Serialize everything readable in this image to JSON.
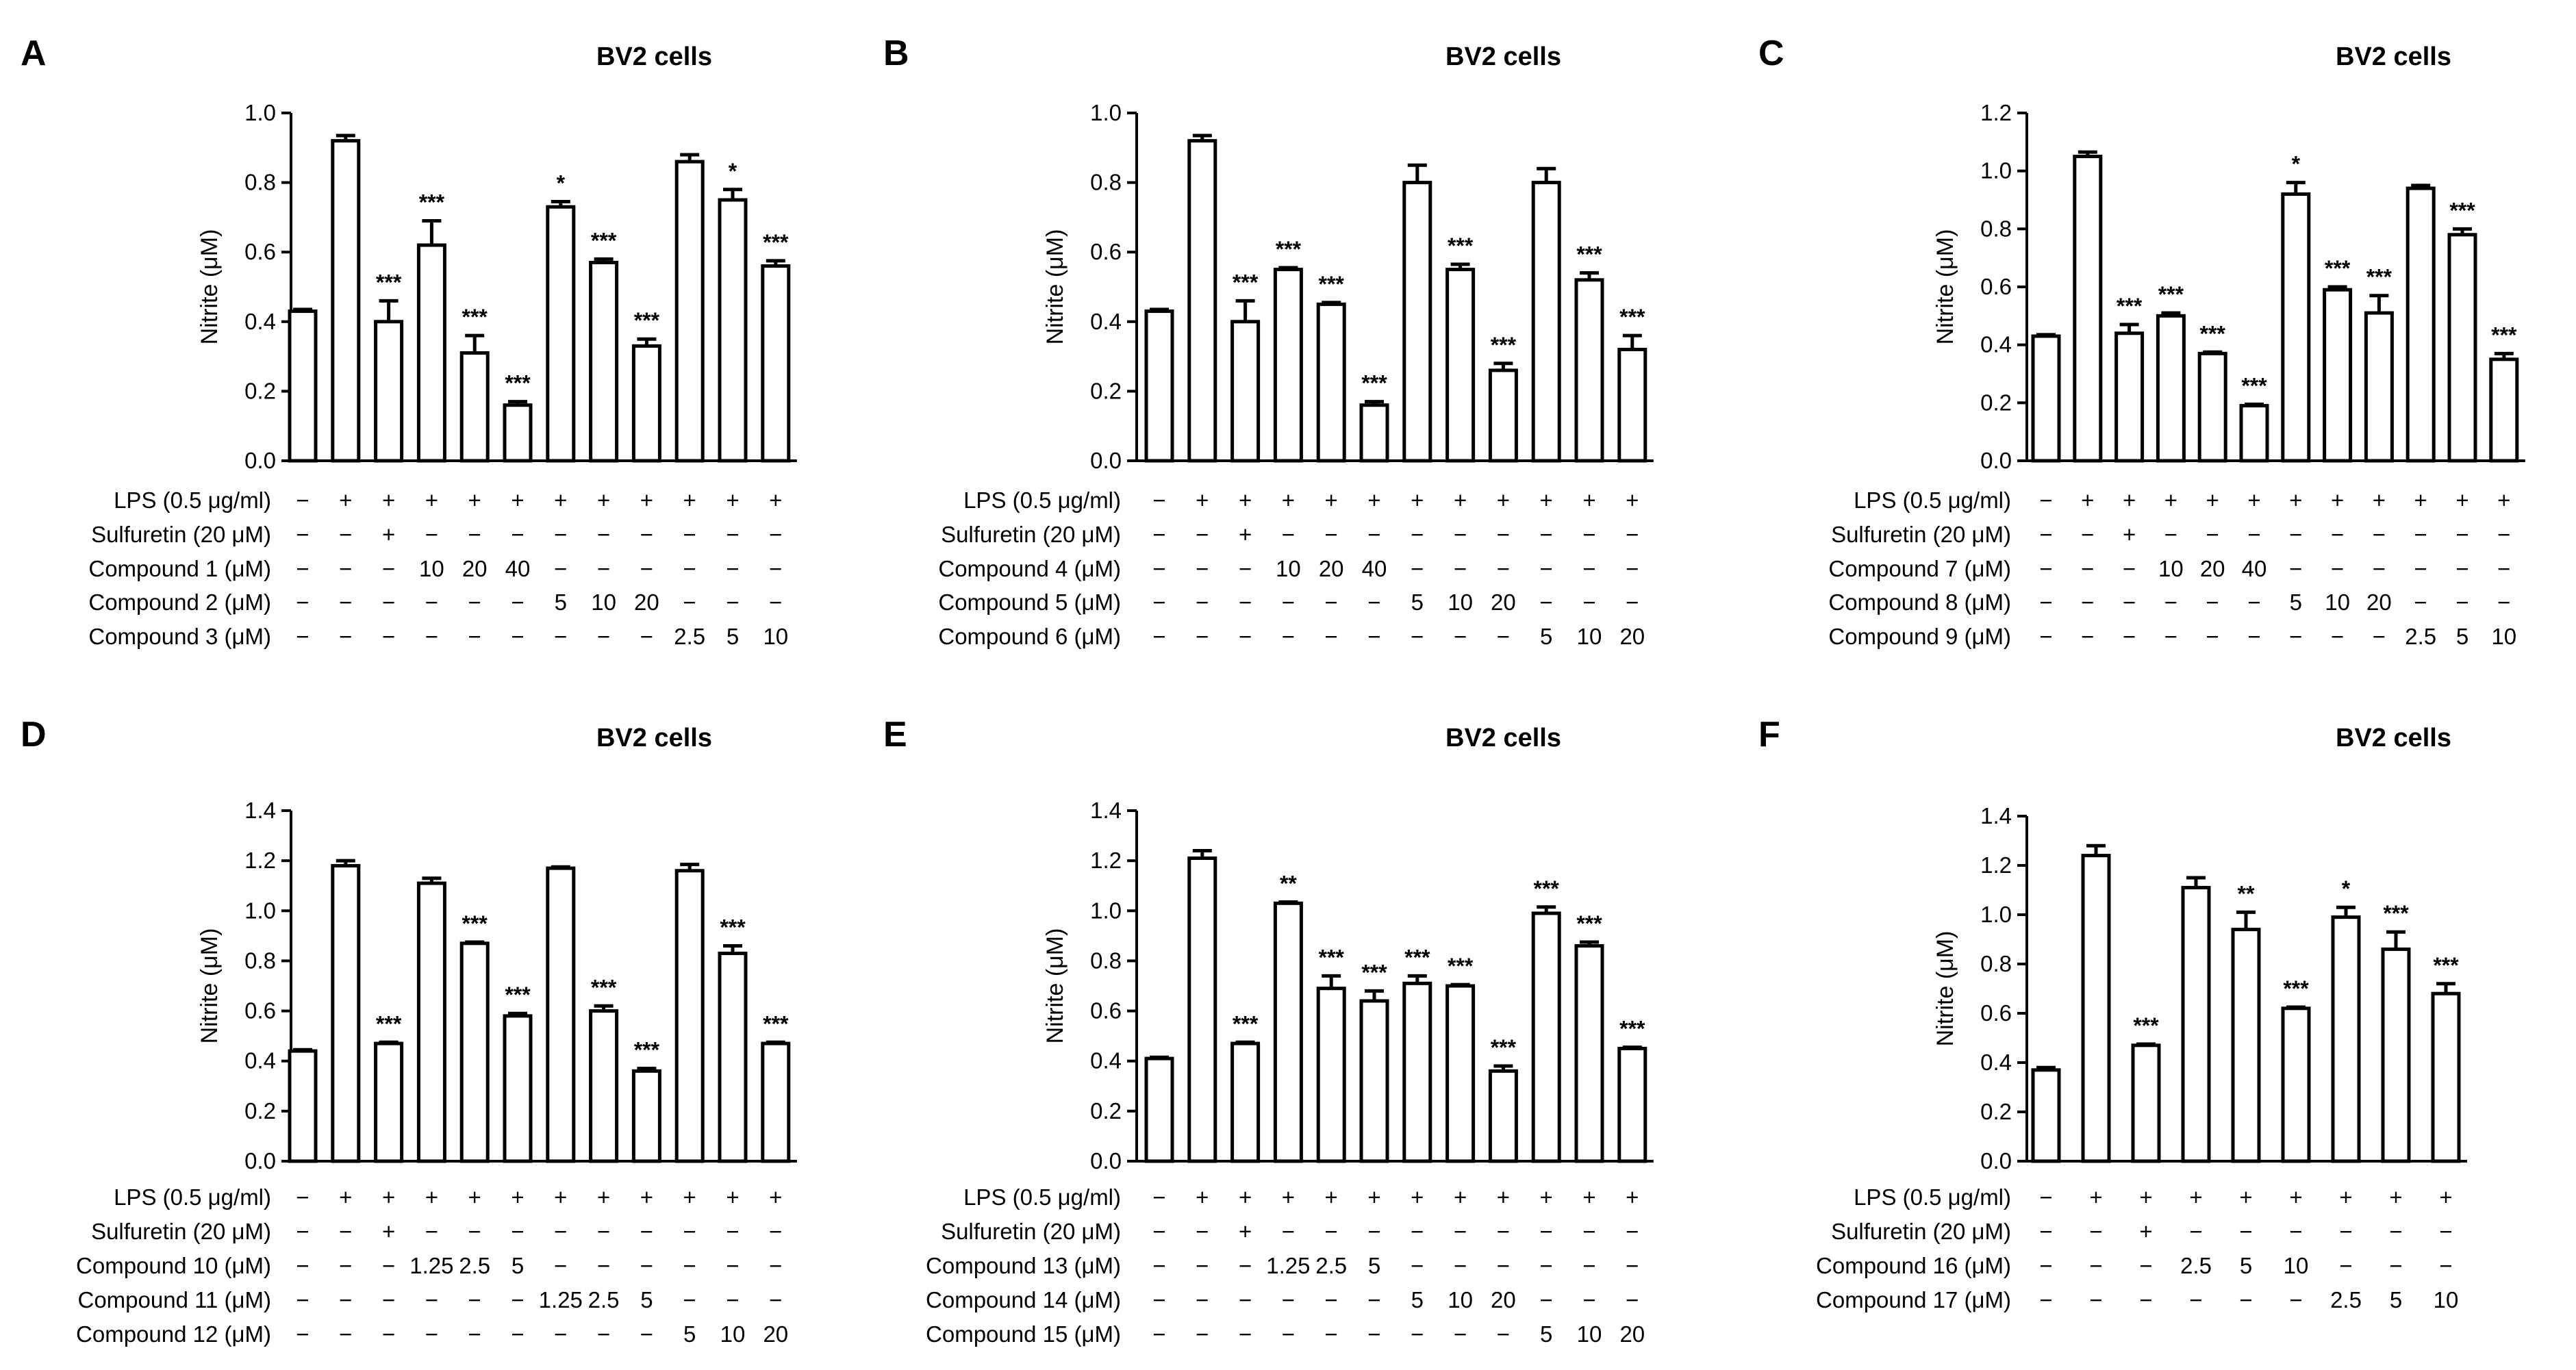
{
  "chart_data": [
    {
      "panel": "A",
      "type": "bar",
      "title": "BV2 cells",
      "ylabel": "Nitrite (μM)",
      "ylim": [
        0,
        1.0
      ],
      "yticks": [
        "0.0",
        "0.2",
        "0.4",
        "0.6",
        "0.8",
        "1.0"
      ],
      "values": [
        0.43,
        0.92,
        0.4,
        0.62,
        0.31,
        0.16,
        0.73,
        0.57,
        0.33,
        0.86,
        0.75,
        0.56
      ],
      "errors": [
        0.005,
        0.015,
        0.06,
        0.07,
        0.05,
        0.01,
        0.015,
        0.01,
        0.02,
        0.02,
        0.03,
        0.015
      ],
      "sig": [
        "",
        "",
        "***",
        "***",
        "***",
        "***",
        "*",
        "***",
        "***",
        "",
        "*",
        "***"
      ],
      "rows": [
        {
          "label": "LPS (0.5 μg/ml)",
          "cells": [
            "−",
            "+",
            "+",
            "+",
            "+",
            "+",
            "+",
            "+",
            "+",
            "+",
            "+",
            "+"
          ]
        },
        {
          "label": "Sulfuretin (20 μM)",
          "cells": [
            "−",
            "−",
            "+",
            "−",
            "−",
            "−",
            "−",
            "−",
            "−",
            "−",
            "−",
            "−"
          ]
        },
        {
          "label": "Compound 1 (μM)",
          "cells": [
            "−",
            "−",
            "−",
            "10",
            "20",
            "40",
            "−",
            "−",
            "−",
            "−",
            "−",
            "−"
          ]
        },
        {
          "label": "Compound 2 (μM)",
          "cells": [
            "−",
            "−",
            "−",
            "−",
            "−",
            "−",
            "5",
            "10",
            "20",
            "−",
            "−",
            "−"
          ]
        },
        {
          "label": "Compound 3 (μM)",
          "cells": [
            "−",
            "−",
            "−",
            "−",
            "−",
            "−",
            "−",
            "−",
            "−",
            "2.5",
            "5",
            "10"
          ]
        }
      ]
    },
    {
      "panel": "B",
      "type": "bar",
      "title": "BV2 cells",
      "ylabel": "Nitrite (μM)",
      "ylim": [
        0,
        1.0
      ],
      "yticks": [
        "0.0",
        "0.2",
        "0.4",
        "0.6",
        "0.8",
        "1.0"
      ],
      "values": [
        0.43,
        0.92,
        0.4,
        0.55,
        0.45,
        0.16,
        0.8,
        0.55,
        0.26,
        0.8,
        0.52,
        0.32
      ],
      "errors": [
        0.005,
        0.015,
        0.06,
        0.005,
        0.005,
        0.01,
        0.05,
        0.015,
        0.02,
        0.04,
        0.02,
        0.04
      ],
      "sig": [
        "",
        "",
        "***",
        "***",
        "***",
        "***",
        "",
        "***",
        "***",
        "",
        "***",
        "***"
      ],
      "rows": [
        {
          "label": "LPS (0.5 μg/ml)",
          "cells": [
            "−",
            "+",
            "+",
            "+",
            "+",
            "+",
            "+",
            "+",
            "+",
            "+",
            "+",
            "+"
          ]
        },
        {
          "label": "Sulfuretin (20 μM)",
          "cells": [
            "−",
            "−",
            "+",
            "−",
            "−",
            "−",
            "−",
            "−",
            "−",
            "−",
            "−",
            "−"
          ]
        },
        {
          "label": "Compound 4 (μM)",
          "cells": [
            "−",
            "−",
            "−",
            "10",
            "20",
            "40",
            "−",
            "−",
            "−",
            "−",
            "−",
            "−"
          ]
        },
        {
          "label": "Compound 5 (μM)",
          "cells": [
            "−",
            "−",
            "−",
            "−",
            "−",
            "−",
            "5",
            "10",
            "20",
            "−",
            "−",
            "−"
          ]
        },
        {
          "label": "Compound 6 (μM)",
          "cells": [
            "−",
            "−",
            "−",
            "−",
            "−",
            "−",
            "−",
            "−",
            "−",
            "5",
            "10",
            "20"
          ]
        }
      ]
    },
    {
      "panel": "C",
      "type": "bar",
      "title": "BV2 cells",
      "ylabel": "Nitrite (μM)",
      "ylim": [
        0,
        1.2
      ],
      "yticks": [
        "0.0",
        "0.2",
        "0.4",
        "0.6",
        "0.8",
        "1.0",
        "1.2"
      ],
      "values": [
        0.43,
        1.05,
        0.44,
        0.5,
        0.37,
        0.19,
        0.92,
        0.59,
        0.51,
        0.94,
        0.78,
        0.35
      ],
      "errors": [
        0.005,
        0.015,
        0.03,
        0.01,
        0.005,
        0.005,
        0.04,
        0.01,
        0.06,
        0.01,
        0.02,
        0.02
      ],
      "sig": [
        "",
        "",
        "***",
        "***",
        "***",
        "***",
        "*",
        "***",
        "***",
        "",
        "***",
        "***"
      ],
      "rows": [
        {
          "label": "LPS (0.5 μg/ml)",
          "cells": [
            "−",
            "+",
            "+",
            "+",
            "+",
            "+",
            "+",
            "+",
            "+",
            "+",
            "+",
            "+"
          ]
        },
        {
          "label": "Sulfuretin (20 μM)",
          "cells": [
            "−",
            "−",
            "+",
            "−",
            "−",
            "−",
            "−",
            "−",
            "−",
            "−",
            "−",
            "−"
          ]
        },
        {
          "label": "Compound 7 (μM)",
          "cells": [
            "−",
            "−",
            "−",
            "10",
            "20",
            "40",
            "−",
            "−",
            "−",
            "−",
            "−",
            "−"
          ]
        },
        {
          "label": "Compound 8 (μM)",
          "cells": [
            "−",
            "−",
            "−",
            "−",
            "−",
            "−",
            "5",
            "10",
            "20",
            "−",
            "−",
            "−"
          ]
        },
        {
          "label": "Compound 9 (μM)",
          "cells": [
            "−",
            "−",
            "−",
            "−",
            "−",
            "−",
            "−",
            "−",
            "−",
            "2.5",
            "5",
            "10"
          ]
        }
      ]
    },
    {
      "panel": "D",
      "type": "bar",
      "title": "BV2 cells",
      "ylabel": "Nitrite (μM)",
      "ylim": [
        0,
        1.4
      ],
      "yticks": [
        "0.0",
        "0.2",
        "0.4",
        "0.6",
        "0.8",
        "1.0",
        "1.2",
        "1.4"
      ],
      "values": [
        0.44,
        1.18,
        0.47,
        1.11,
        0.87,
        0.58,
        1.17,
        0.6,
        0.36,
        1.16,
        0.83,
        0.47
      ],
      "errors": [
        0.005,
        0.02,
        0.005,
        0.02,
        0.005,
        0.01,
        0.005,
        0.02,
        0.01,
        0.025,
        0.03,
        0.005
      ],
      "sig": [
        "",
        "",
        "***",
        "",
        "***",
        "***",
        "",
        "***",
        "***",
        "",
        "***",
        "***"
      ],
      "rows": [
        {
          "label": "LPS (0.5 μg/ml)",
          "cells": [
            "−",
            "+",
            "+",
            "+",
            "+",
            "+",
            "+",
            "+",
            "+",
            "+",
            "+",
            "+"
          ]
        },
        {
          "label": "Sulfuretin (20 μM)",
          "cells": [
            "−",
            "−",
            "+",
            "−",
            "−",
            "−",
            "−",
            "−",
            "−",
            "−",
            "−",
            "−"
          ]
        },
        {
          "label": "Compound 10 (μM)",
          "cells": [
            "−",
            "−",
            "−",
            "1.25",
            "2.5",
            "5",
            "−",
            "−",
            "−",
            "−",
            "−",
            "−"
          ]
        },
        {
          "label": "Compound 11 (μM)",
          "cells": [
            "−",
            "−",
            "−",
            "−",
            "−",
            "−",
            "1.25",
            "2.5",
            "5",
            "−",
            "−",
            "−"
          ]
        },
        {
          "label": "Compound 12 (μM)",
          "cells": [
            "−",
            "−",
            "−",
            "−",
            "−",
            "−",
            "−",
            "−",
            "−",
            "5",
            "10",
            "20"
          ]
        }
      ]
    },
    {
      "panel": "E",
      "type": "bar",
      "title": "BV2 cells",
      "ylabel": "Nitrite (μM)",
      "ylim": [
        0,
        1.4
      ],
      "yticks": [
        "0.0",
        "0.2",
        "0.4",
        "0.6",
        "0.8",
        "1.0",
        "1.2",
        "1.4"
      ],
      "values": [
        0.41,
        1.21,
        0.47,
        1.03,
        0.69,
        0.64,
        0.71,
        0.7,
        0.36,
        0.99,
        0.86,
        0.45
      ],
      "errors": [
        0.005,
        0.03,
        0.005,
        0.005,
        0.05,
        0.04,
        0.03,
        0.005,
        0.02,
        0.025,
        0.015,
        0.005
      ],
      "sig": [
        "",
        "",
        "***",
        "**",
        "***",
        "***",
        "***",
        "***",
        "***",
        "***",
        "***",
        "***"
      ],
      "rows": [
        {
          "label": "LPS (0.5 μg/ml)",
          "cells": [
            "−",
            "+",
            "+",
            "+",
            "+",
            "+",
            "+",
            "+",
            "+",
            "+",
            "+",
            "+"
          ]
        },
        {
          "label": "Sulfuretin (20 μM)",
          "cells": [
            "−",
            "−",
            "+",
            "−",
            "−",
            "−",
            "−",
            "−",
            "−",
            "−",
            "−",
            "−"
          ]
        },
        {
          "label": "Compound 13 (μM)",
          "cells": [
            "−",
            "−",
            "−",
            "1.25",
            "2.5",
            "5",
            "−",
            "−",
            "−",
            "−",
            "−",
            "−"
          ]
        },
        {
          "label": "Compound 14 (μM)",
          "cells": [
            "−",
            "−",
            "−",
            "−",
            "−",
            "−",
            "5",
            "10",
            "20",
            "−",
            "−",
            "−"
          ]
        },
        {
          "label": "Compound 15 (μM)",
          "cells": [
            "−",
            "−",
            "−",
            "−",
            "−",
            "−",
            "−",
            "−",
            "−",
            "5",
            "10",
            "20"
          ]
        }
      ]
    },
    {
      "panel": "F",
      "type": "bar",
      "title": "BV2 cells",
      "ylabel": "Nitrite (μM)",
      "ylim": [
        0,
        1.4
      ],
      "yticks": [
        "0.0",
        "0.2",
        "0.4",
        "0.6",
        "0.8",
        "1.0",
        "1.2",
        "1.4"
      ],
      "values": [
        0.37,
        1.24,
        0.47,
        1.11,
        0.94,
        0.62,
        0.99,
        0.86,
        0.68
      ],
      "errors": [
        0.01,
        0.04,
        0.005,
        0.04,
        0.07,
        0.005,
        0.04,
        0.07,
        0.04
      ],
      "sig": [
        "",
        "",
        "***",
        "",
        "**",
        "***",
        "*",
        "***",
        "***"
      ],
      "rows": [
        {
          "label": "LPS (0.5 μg/ml)",
          "cells": [
            "−",
            "+",
            "+",
            "+",
            "+",
            "+",
            "+",
            "+",
            "+"
          ]
        },
        {
          "label": "Sulfuretin (20 μM)",
          "cells": [
            "−",
            "−",
            "+",
            "−",
            "−",
            "−",
            "−",
            "−",
            "−"
          ]
        },
        {
          "label": "Compound 16 (μM)",
          "cells": [
            "−",
            "−",
            "−",
            "2.5",
            "5",
            "10",
            "−",
            "−",
            "−"
          ]
        },
        {
          "label": "Compound 17 (μM)",
          "cells": [
            "−",
            "−",
            "−",
            "−",
            "−",
            "−",
            "2.5",
            "5",
            "10"
          ]
        }
      ]
    }
  ]
}
